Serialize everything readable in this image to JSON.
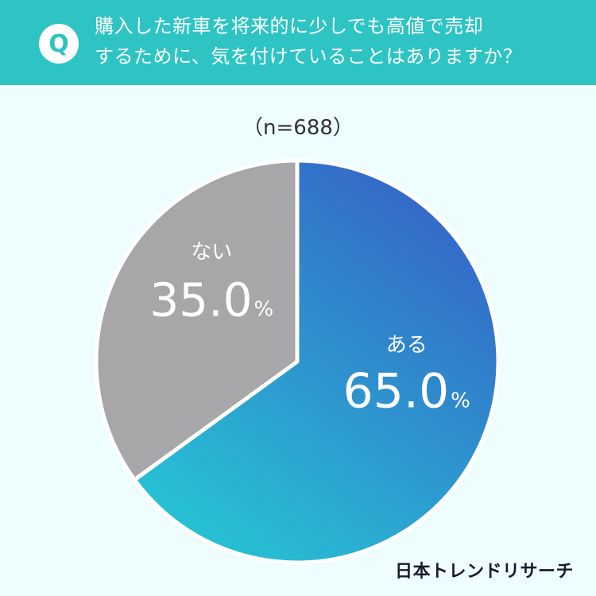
{
  "header": {
    "badge": "Q",
    "question_line1": "購入した新車を将来的に少しでも高値で売却",
    "question_line2": "するために、気を付けていることはありますか？"
  },
  "chart_data": {
    "type": "pie",
    "sample_size_label": "（n=688）",
    "slices": [
      {
        "label": "ある",
        "value": 65.0,
        "value_label": "65.0",
        "unit": "%",
        "color": "#3567c8"
      },
      {
        "label": "ない",
        "value": 35.0,
        "value_label": "35.0",
        "unit": "%",
        "color": "#a7a7aa"
      }
    ],
    "start": "12 o'clock",
    "direction": "clockwise"
  },
  "footer": {
    "brand": "日本トレンドリサーチ"
  },
  "colors": {
    "header_bg": "#2ec4c4",
    "page_bg": "#eefdfd",
    "slice_gradient_start": "#26c2d4",
    "slice_gradient_end": "#3567c8"
  }
}
